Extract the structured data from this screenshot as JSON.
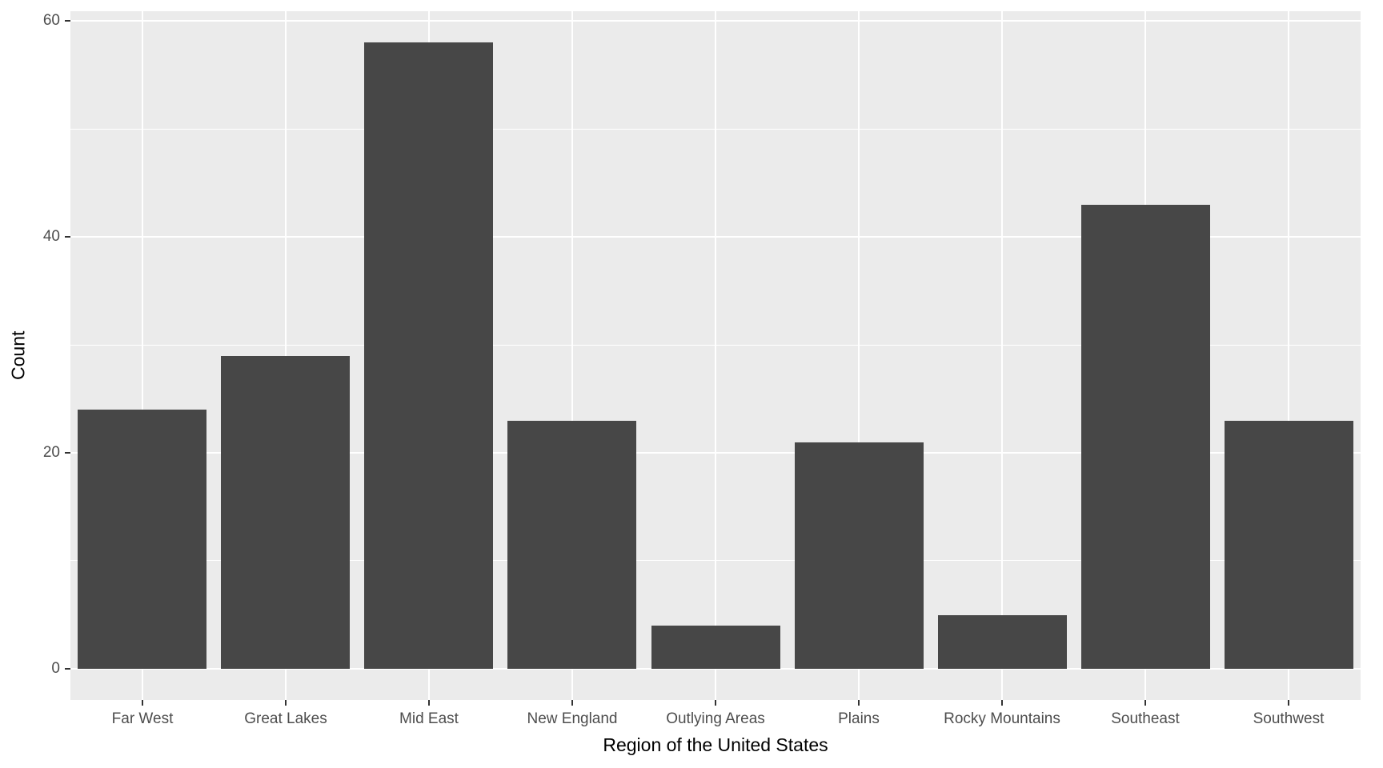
{
  "chart_data": {
    "type": "bar",
    "categories": [
      "Far West",
      "Great Lakes",
      "Mid East",
      "New England",
      "Outlying Areas",
      "Plains",
      "Rocky Mountains",
      "Southeast",
      "Southwest"
    ],
    "values": [
      24,
      29,
      58,
      23,
      4,
      21,
      5,
      43,
      23
    ],
    "title": "",
    "xlabel": "Region of the United States",
    "ylabel": "Count",
    "ylim": [
      0,
      60
    ],
    "yticks": [
      0,
      20,
      40,
      60
    ],
    "ytick_labels": [
      "0",
      "20",
      "40",
      "60"
    ],
    "minor_gridlines": [
      10,
      30,
      50
    ],
    "grid": true,
    "legend": false,
    "colors": {
      "bar_fill": "#474747",
      "panel_background": "#EBEBEB",
      "gridline": "#FFFFFF",
      "axis_text": "#4D4D4D",
      "axis_title": "#000000",
      "tick_mark": "#333333"
    }
  }
}
